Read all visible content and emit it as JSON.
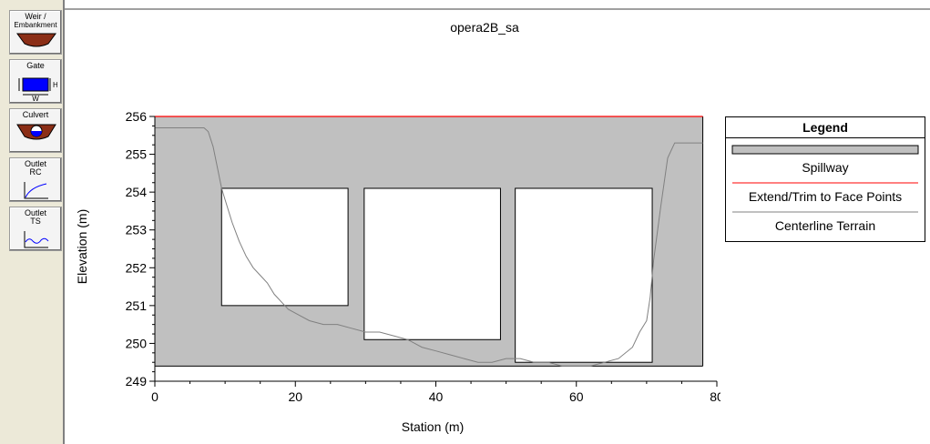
{
  "toolbar": {
    "buttons": [
      {
        "label_line1": "Weir /",
        "label_line2": "Embankment",
        "icon": "weir-embankment-icon"
      },
      {
        "label": "Gate",
        "icon": "gate-icon",
        "h_label": "H",
        "w_label": "W"
      },
      {
        "label": "Culvert",
        "icon": "culvert-icon"
      },
      {
        "label_line1": "Outlet",
        "label_line2": "RC",
        "icon": "outlet-rc-icon"
      },
      {
        "label_line1": "Outlet",
        "label_line2": "TS",
        "icon": "outlet-ts-icon"
      }
    ]
  },
  "legend": {
    "title": "Legend",
    "items": [
      "Spillway",
      "Extend/Trim to Face Points",
      "Centerline Terrain"
    ]
  },
  "colors": {
    "spillway_fill": "#c0c0c0",
    "extend_line": "#ff0000",
    "terrain_line": "#808080",
    "gate_blue": "#0000ff",
    "culvert_brown": "#8b2e16"
  },
  "chart_data": {
    "type": "area",
    "title": "opera2B_sa",
    "xlabel": "Station (m)",
    "ylabel": "Elevation (m)",
    "xlim": [
      0,
      80
    ],
    "ylim": [
      249,
      256
    ],
    "xticks": [
      0,
      20,
      40,
      60,
      80
    ],
    "yticks": [
      249,
      250,
      251,
      252,
      253,
      254,
      255,
      256
    ],
    "spillway": {
      "x_start": 0,
      "x_end": 78,
      "bottom": 249.4,
      "top": 256
    },
    "extend_trim_elevation": 256,
    "gate_openings": [
      {
        "x_start": 9.5,
        "x_end": 27.5,
        "bottom": 251.0,
        "top": 254.1
      },
      {
        "x_start": 29.8,
        "x_end": 49.2,
        "bottom": 250.1,
        "top": 254.1
      },
      {
        "x_start": 51.3,
        "x_end": 70.8,
        "bottom": 249.5,
        "top": 254.1
      }
    ],
    "terrain": {
      "x": [
        0,
        7,
        7.6,
        8.3,
        9.5,
        10,
        11,
        12,
        13,
        14,
        15,
        16,
        17,
        18,
        19,
        20,
        22,
        24,
        26,
        28,
        30,
        32,
        34,
        36,
        38,
        40,
        42,
        44,
        46,
        48,
        50,
        52,
        54,
        56,
        58,
        60,
        62,
        64,
        66,
        68,
        69,
        70,
        70.5,
        71,
        72,
        73,
        74,
        78
      ],
      "y": [
        255.7,
        255.7,
        255.6,
        255.2,
        254.1,
        253.8,
        253.2,
        252.7,
        252.3,
        252.0,
        251.8,
        251.6,
        251.3,
        251.1,
        250.9,
        250.8,
        250.6,
        250.5,
        250.5,
        250.4,
        250.3,
        250.3,
        250.2,
        250.1,
        249.9,
        249.8,
        249.7,
        249.6,
        249.5,
        249.5,
        249.6,
        249.6,
        249.5,
        249.5,
        249.4,
        249.4,
        249.4,
        249.5,
        249.6,
        249.9,
        250.3,
        250.6,
        251.2,
        252.2,
        253.6,
        254.9,
        255.3,
        255.3
      ]
    }
  }
}
